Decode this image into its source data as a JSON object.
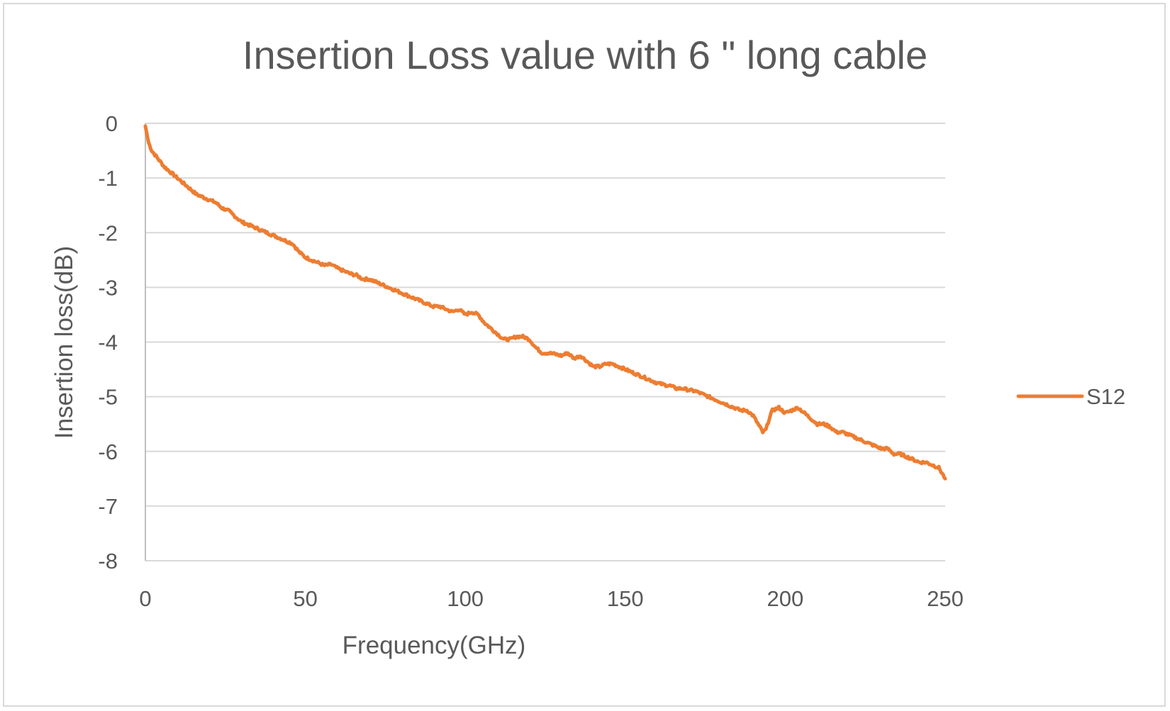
{
  "chart_data": {
    "type": "line",
    "title": "Insertion Loss value with 6 \" long cable",
    "xlabel": "Frequency(GHz)",
    "ylabel": "Insertion loss(dB)",
    "xlim": [
      0,
      250
    ],
    "ylim": [
      -8,
      0
    ],
    "x_ticks": [
      0,
      50,
      100,
      150,
      200,
      250
    ],
    "y_ticks": [
      0,
      -1,
      -2,
      -3,
      -4,
      -5,
      -6,
      -7,
      -8
    ],
    "grid": "horizontal",
    "legend_position": "right",
    "series": [
      {
        "name": "S12",
        "color": "#ED7D31",
        "x": [
          0,
          1,
          2,
          4,
          6,
          8,
          10,
          12,
          14,
          16,
          18,
          20,
          22,
          24,
          26,
          28,
          30,
          32,
          34,
          36,
          38,
          40,
          42,
          44,
          46,
          48,
          50,
          52,
          54,
          56,
          58,
          60,
          62,
          64,
          66,
          68,
          70,
          72,
          74,
          76,
          78,
          80,
          82,
          84,
          86,
          88,
          90,
          92,
          94,
          96,
          98,
          100,
          102,
          104,
          106,
          108,
          110,
          112,
          114,
          116,
          118,
          120,
          122,
          124,
          126,
          128,
          130,
          132,
          134,
          136,
          138,
          140,
          142,
          144,
          146,
          148,
          150,
          152,
          154,
          156,
          158,
          160,
          162,
          164,
          166,
          168,
          170,
          172,
          174,
          176,
          178,
          180,
          182,
          184,
          186,
          188,
          190,
          192,
          193,
          194,
          195,
          196,
          198,
          200,
          202,
          204,
          206,
          208,
          210,
          212,
          214,
          216,
          218,
          220,
          222,
          224,
          226,
          228,
          230,
          232,
          234,
          236,
          238,
          240,
          242,
          244,
          246,
          248,
          249,
          250
        ],
        "y": [
          -0.05,
          -0.35,
          -0.5,
          -0.65,
          -0.8,
          -0.9,
          -1.0,
          -1.1,
          -1.2,
          -1.3,
          -1.35,
          -1.4,
          -1.45,
          -1.55,
          -1.6,
          -1.7,
          -1.8,
          -1.85,
          -1.9,
          -1.95,
          -2.0,
          -2.05,
          -2.1,
          -2.15,
          -2.2,
          -2.35,
          -2.45,
          -2.5,
          -2.55,
          -2.6,
          -2.58,
          -2.65,
          -2.7,
          -2.75,
          -2.78,
          -2.85,
          -2.85,
          -2.9,
          -2.95,
          -3.0,
          -3.05,
          -3.1,
          -3.15,
          -3.2,
          -3.25,
          -3.3,
          -3.35,
          -3.35,
          -3.4,
          -3.45,
          -3.4,
          -3.5,
          -3.45,
          -3.5,
          -3.65,
          -3.75,
          -3.85,
          -3.95,
          -3.95,
          -3.9,
          -3.9,
          -3.95,
          -4.1,
          -4.2,
          -4.2,
          -4.22,
          -4.25,
          -4.2,
          -4.3,
          -4.25,
          -4.35,
          -4.45,
          -4.45,
          -4.4,
          -4.4,
          -4.45,
          -4.5,
          -4.55,
          -4.6,
          -4.65,
          -4.7,
          -4.75,
          -4.78,
          -4.8,
          -4.85,
          -4.85,
          -4.88,
          -4.9,
          -4.95,
          -5.0,
          -5.05,
          -5.1,
          -5.15,
          -5.2,
          -5.25,
          -5.25,
          -5.35,
          -5.55,
          -5.65,
          -5.6,
          -5.4,
          -5.25,
          -5.2,
          -5.3,
          -5.25,
          -5.2,
          -5.3,
          -5.4,
          -5.5,
          -5.5,
          -5.55,
          -5.65,
          -5.65,
          -5.7,
          -5.75,
          -5.8,
          -5.85,
          -5.9,
          -5.95,
          -5.95,
          -6.05,
          -6.05,
          -6.1,
          -6.15,
          -6.2,
          -6.2,
          -6.25,
          -6.3,
          -6.4,
          -6.5
        ]
      }
    ]
  }
}
